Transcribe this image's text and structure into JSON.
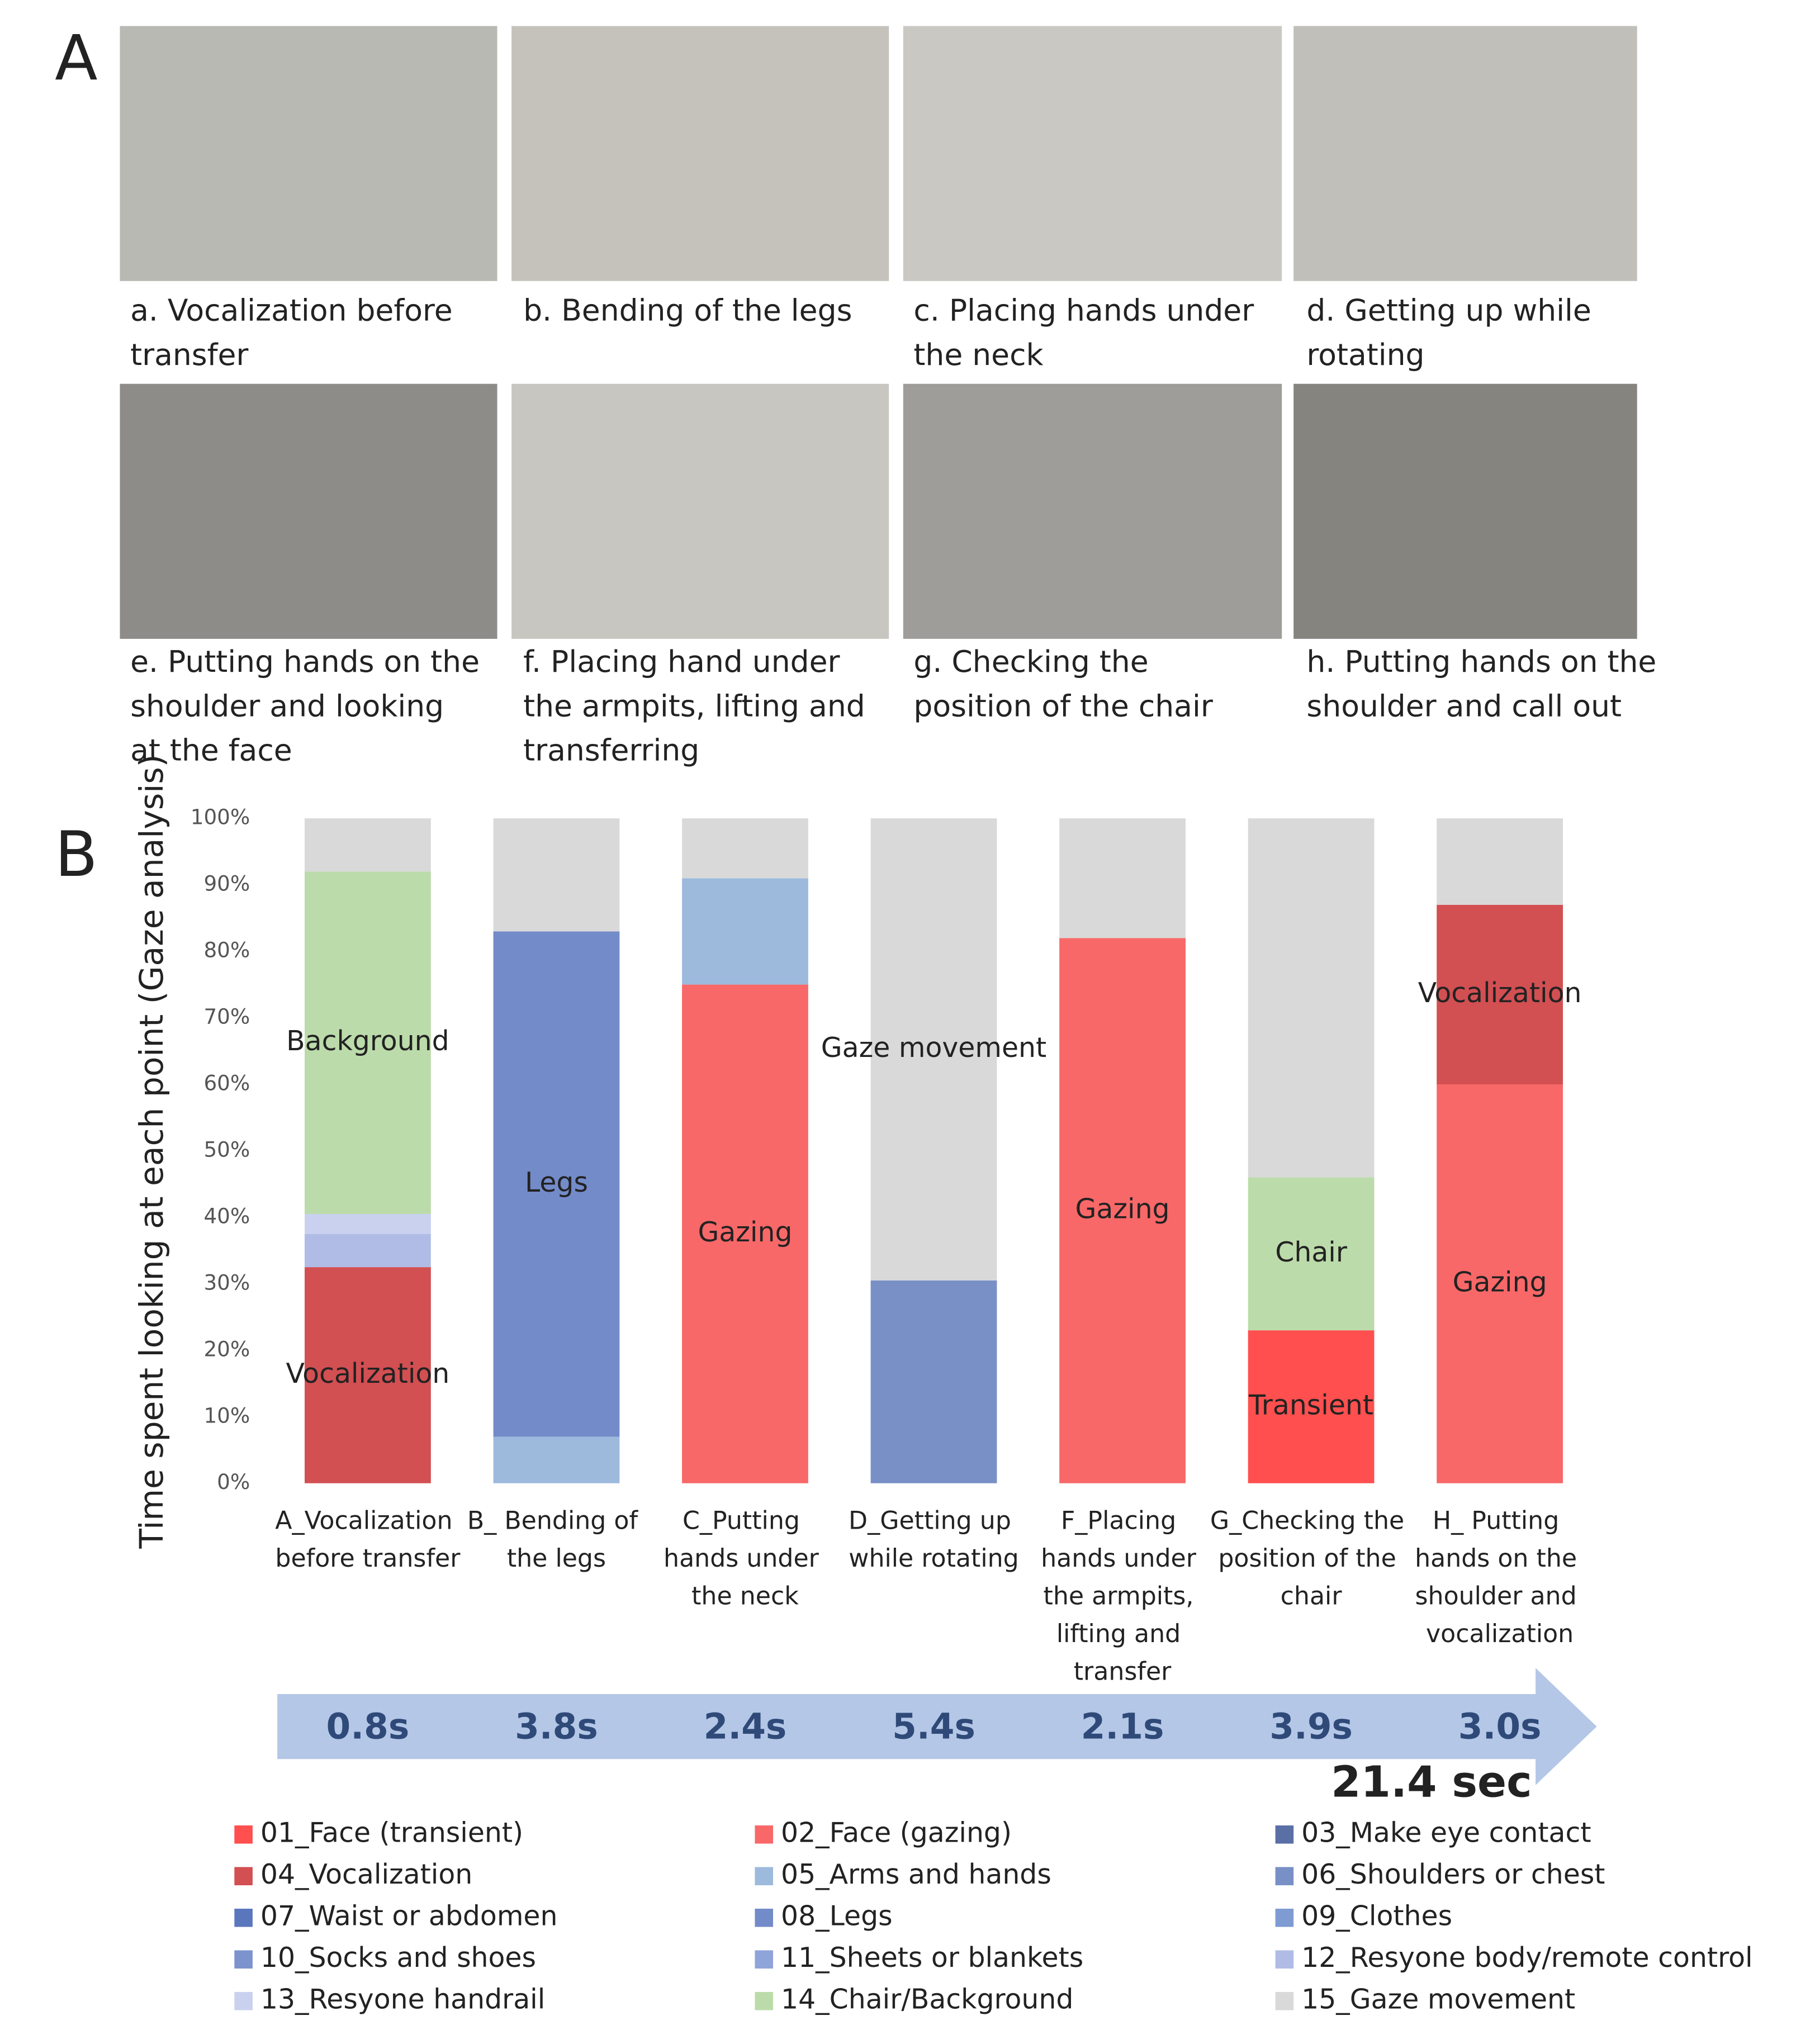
{
  "panel_a": {
    "label": "A",
    "captions": [
      "a. Vocalization before transfer",
      "b. Bending of the legs",
      "c. Placing hands under the neck",
      "d. Getting up while rotating",
      "e. Putting hands on the shoulder and looking at the face",
      "f. Placing hand under the armpits, lifting and transferring",
      "g. Checking the position of the chair",
      "h. Putting hands on the shoulder and call out"
    ]
  },
  "chart_data": {
    "type": "stacked_bar",
    "panel_label": "B",
    "ylabel": "Time spent looking at each point (Gaze analysis)",
    "categories": [
      "A_Vocalization before transfer",
      "B_ Bending of the legs",
      "C_Putting hands under the neck",
      "D_Getting up while rotating",
      "F_Placing hands under the armpits, lifting and transfer",
      "G_Checking the position of the chair",
      "H_ Putting hands on the shoulder and vocalization"
    ],
    "ylim": [
      0,
      100
    ],
    "yticks": [
      {
        "value": 0,
        "label": "0%"
      },
      {
        "value": 10,
        "label": "10%"
      },
      {
        "value": 20,
        "label": "20%"
      },
      {
        "value": 30,
        "label": "30%"
      },
      {
        "value": 40,
        "label": "40%"
      },
      {
        "value": 50,
        "label": "50%"
      },
      {
        "value": 60,
        "label": "60%"
      },
      {
        "value": 70,
        "label": "70%"
      },
      {
        "value": 80,
        "label": "80%"
      },
      {
        "value": 90,
        "label": "90%"
      },
      {
        "value": 100,
        "label": "100%"
      }
    ],
    "series": [
      {
        "name": "01_Face (transient)",
        "color": "#ff4f4f",
        "values": [
          null,
          null,
          null,
          null,
          null,
          23,
          null
        ],
        "labels": [
          null,
          null,
          null,
          null,
          null,
          "Transient",
          null
        ]
      },
      {
        "name": "02_Face (gazing)",
        "color": "#f86868",
        "values": [
          null,
          null,
          75,
          null,
          82,
          null,
          60
        ],
        "labels": [
          null,
          null,
          "Gazing",
          null,
          "Gazing",
          null,
          "Gazing"
        ]
      },
      {
        "name": "03_Make eye contact",
        "color": "#5a6fa6",
        "values": [
          null,
          null,
          null,
          null,
          null,
          null,
          null
        ]
      },
      {
        "name": "04_Vocalization",
        "color": "#d24f52",
        "values": [
          32.5,
          null,
          null,
          null,
          null,
          null,
          27
        ],
        "labels": [
          "Vocalization",
          null,
          null,
          null,
          null,
          null,
          "Vocalization"
        ]
      },
      {
        "name": "05_Arms and hands",
        "color": "#9dbadd",
        "values": [
          null,
          7,
          16,
          null,
          null,
          null,
          null
        ]
      },
      {
        "name": "06_Shoulders or chest",
        "color": "#7890c6",
        "values": [
          null,
          null,
          null,
          30.5,
          null,
          null,
          null
        ]
      },
      {
        "name": "07_Waist or abdomen",
        "color": "#5a77bd",
        "values": [
          null,
          null,
          null,
          null,
          null,
          null,
          null
        ]
      },
      {
        "name": "08_Legs",
        "color": "#738bc9",
        "values": [
          null,
          76,
          null,
          null,
          null,
          null,
          null
        ],
        "labels": [
          null,
          "Legs",
          null,
          null,
          null,
          null,
          null
        ]
      },
      {
        "name": "09_Clothes",
        "color": "#7e9bd2",
        "values": [
          null,
          null,
          null,
          null,
          null,
          null,
          null
        ]
      },
      {
        "name": "10_Socks and shoes",
        "color": "#7c93ce",
        "values": [
          null,
          null,
          null,
          null,
          null,
          null,
          null
        ]
      },
      {
        "name": "11_Sheets or blankets",
        "color": "#8fa4d8",
        "values": [
          null,
          null,
          null,
          null,
          null,
          null,
          null
        ]
      },
      {
        "name": "12_Resyone body/remote control",
        "color": "#b0bce6",
        "values": [
          5,
          null,
          null,
          null,
          null,
          null,
          null
        ]
      },
      {
        "name": "13_Resyone handrail",
        "color": "#c9d1ef",
        "values": [
          3,
          null,
          null,
          null,
          null,
          null,
          null
        ]
      },
      {
        "name": "14_Chair/Background",
        "color": "#bcdbaa",
        "values": [
          51.5,
          null,
          null,
          null,
          null,
          23,
          null
        ],
        "labels": [
          "Background",
          null,
          null,
          null,
          null,
          "Chair",
          null
        ]
      },
      {
        "name": "15_Gaze movement",
        "color": "#d9d9d9",
        "values": [
          8,
          17,
          9,
          69.5,
          18,
          54,
          13
        ],
        "labels": [
          null,
          null,
          null,
          "Gaze movement",
          null,
          null,
          null
        ]
      }
    ],
    "durations": [
      "0.8s",
      "3.8s",
      "2.4s",
      "5.4s",
      "2.1s",
      "3.9s",
      "3.0s"
    ],
    "total": "21.4 sec"
  }
}
